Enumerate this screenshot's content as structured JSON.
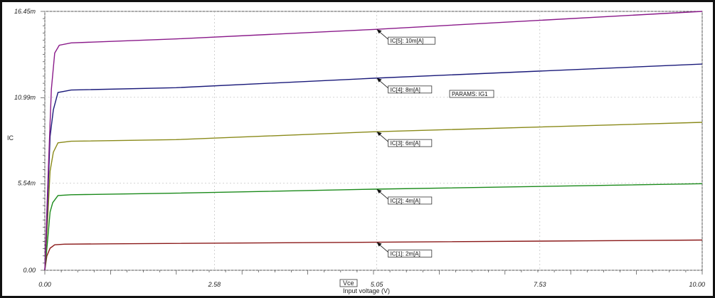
{
  "chart_data": {
    "type": "line",
    "title": "",
    "xlabel": "Input voltage (V)",
    "xlabel_tag": "Vce",
    "ylabel": "IC",
    "xlim": [
      0,
      10
    ],
    "ylim": [
      0,
      0.01645
    ],
    "x_ticks": [
      "0.00",
      "2.58",
      "5.05",
      "7.53",
      "10.00"
    ],
    "x_tick_values": [
      0,
      2.58,
      5.05,
      7.53,
      10.0
    ],
    "y_ticks": [
      "0.00",
      "5.54m",
      "10.99m",
      "16.45m"
    ],
    "y_tick_values": [
      0,
      0.00554,
      0.01099,
      0.01645
    ],
    "grid": true,
    "params_label": "PARAMS: IG1",
    "series": [
      {
        "name": "IC[1]: 2m[A]",
        "color": "#8b1a1a",
        "points": [
          [
            0,
            0
          ],
          [
            0.03,
            0.0009
          ],
          [
            0.08,
            0.0014
          ],
          [
            0.15,
            0.00162
          ],
          [
            0.3,
            0.00166
          ],
          [
            1,
            0.00168
          ],
          [
            5,
            0.00178
          ],
          [
            10,
            0.00192
          ]
        ],
        "annotation_x": 5.05
      },
      {
        "name": "IC[2]: 4m[A]",
        "color": "#1a8a1a",
        "points": [
          [
            0,
            0
          ],
          [
            0.04,
            0.0018
          ],
          [
            0.08,
            0.0037
          ],
          [
            0.12,
            0.0043
          ],
          [
            0.2,
            0.00475
          ],
          [
            0.4,
            0.0048
          ],
          [
            2,
            0.0049
          ],
          [
            5,
            0.00515
          ],
          [
            10,
            0.0055
          ]
        ],
        "annotation_x": 5.05
      },
      {
        "name": "IC[3]: 6m[A]",
        "color": "#8a8a1a",
        "points": [
          [
            0,
            0
          ],
          [
            0.04,
            0.003
          ],
          [
            0.08,
            0.0063
          ],
          [
            0.13,
            0.0075
          ],
          [
            0.2,
            0.0081
          ],
          [
            0.4,
            0.0082
          ],
          [
            2,
            0.0083
          ],
          [
            5,
            0.0088
          ],
          [
            10,
            0.0094
          ]
        ],
        "annotation_x": 5.05
      },
      {
        "name": "IC[4]: 8m[A]",
        "color": "#1a1a7a",
        "points": [
          [
            0,
            0
          ],
          [
            0.04,
            0.004
          ],
          [
            0.08,
            0.0085
          ],
          [
            0.13,
            0.0102
          ],
          [
            0.2,
            0.0113
          ],
          [
            0.4,
            0.01145
          ],
          [
            2,
            0.0116
          ],
          [
            5,
            0.0122
          ],
          [
            10,
            0.0131
          ]
        ],
        "annotation_x": 5.05
      },
      {
        "name": "IC[5]: 10m[A]",
        "color": "#8a1a8a",
        "points": [
          [
            0,
            0
          ],
          [
            0.05,
            0.006
          ],
          [
            0.1,
            0.0115
          ],
          [
            0.15,
            0.0138
          ],
          [
            0.22,
            0.0143
          ],
          [
            0.4,
            0.01445
          ],
          [
            2,
            0.0147
          ],
          [
            5,
            0.0153
          ],
          [
            10,
            0.01645
          ]
        ],
        "annotation_x": 5.05
      }
    ]
  }
}
